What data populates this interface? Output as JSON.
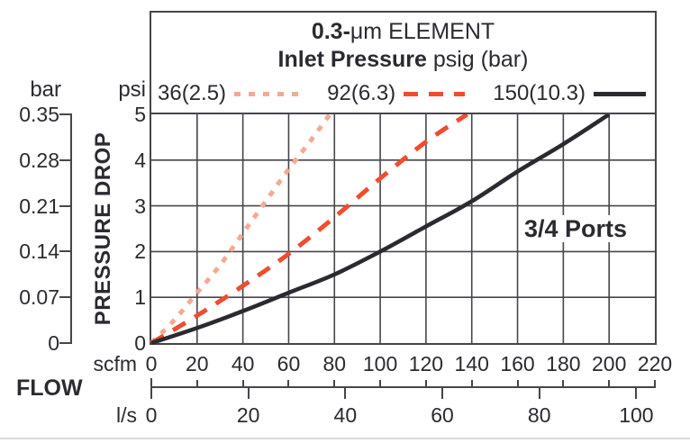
{
  "figure": {
    "title_bold": "0.3-",
    "title_rest": "μm ELEMENT",
    "subtitle_bold": "Inlet Pressure",
    "subtitle_rest": " psig (bar)",
    "annotation": "3/4 Ports",
    "y_axis_title": "PRESSURE DROP",
    "x_axis_title": "FLOW",
    "y_primary_unit": "psi",
    "y_secondary_unit": "bar",
    "x_primary_unit": "scfm",
    "x_secondary_unit": "l/s"
  },
  "colors": {
    "ink": "#2b2a31",
    "grid": "#46454c",
    "series_36": "#f5a993",
    "series_92": "#ee4d2e",
    "series_150": "#2b2a30"
  },
  "chart_data": {
    "type": "line",
    "title": "0.3-μm ELEMENT Inlet Pressure psig (bar)",
    "xlabel": "FLOW",
    "ylabel": "PRESSURE DROP",
    "annotation": "3/4 Ports",
    "x_range_scfm": [
      0,
      220
    ],
    "y_range_psi": [
      0,
      5
    ],
    "x_ticks_scfm": [
      0,
      20,
      40,
      60,
      80,
      100,
      120,
      140,
      160,
      180,
      200,
      220
    ],
    "x_ticks_ls": [
      0,
      20,
      40,
      60,
      80,
      100
    ],
    "y_ticks_psi": [
      0,
      1,
      2,
      3,
      4,
      5
    ],
    "y_ticks_bar": [
      "0",
      "0.07",
      "0.14",
      "0.21",
      "0.28",
      "0.35"
    ],
    "scfm_per_ls": 2.1189,
    "grid": "on",
    "legend_position": "top",
    "series": [
      {
        "name": "36(2.5)",
        "style": "dotted",
        "color": "#f5a993",
        "points_scfm_psi": [
          [
            0,
            0
          ],
          [
            10,
            0.5
          ],
          [
            20,
            1.1
          ],
          [
            30,
            1.7
          ],
          [
            40,
            2.4
          ],
          [
            50,
            3.1
          ],
          [
            60,
            3.8
          ],
          [
            70,
            4.45
          ],
          [
            78,
            5.0
          ]
        ]
      },
      {
        "name": "92(6.3)",
        "style": "dashed",
        "color": "#ee4d2e",
        "points_scfm_psi": [
          [
            0,
            0
          ],
          [
            20,
            0.6
          ],
          [
            40,
            1.25
          ],
          [
            60,
            1.95
          ],
          [
            80,
            2.75
          ],
          [
            100,
            3.6
          ],
          [
            120,
            4.4
          ],
          [
            138,
            5.0
          ]
        ]
      },
      {
        "name": "150(10.3)",
        "style": "solid",
        "color": "#2b2a30",
        "points_scfm_psi": [
          [
            0,
            0
          ],
          [
            20,
            0.33
          ],
          [
            40,
            0.7
          ],
          [
            60,
            1.1
          ],
          [
            80,
            1.5
          ],
          [
            100,
            2.0
          ],
          [
            120,
            2.55
          ],
          [
            140,
            3.1
          ],
          [
            160,
            3.75
          ],
          [
            180,
            4.35
          ],
          [
            200,
            5.0
          ]
        ]
      }
    ]
  }
}
